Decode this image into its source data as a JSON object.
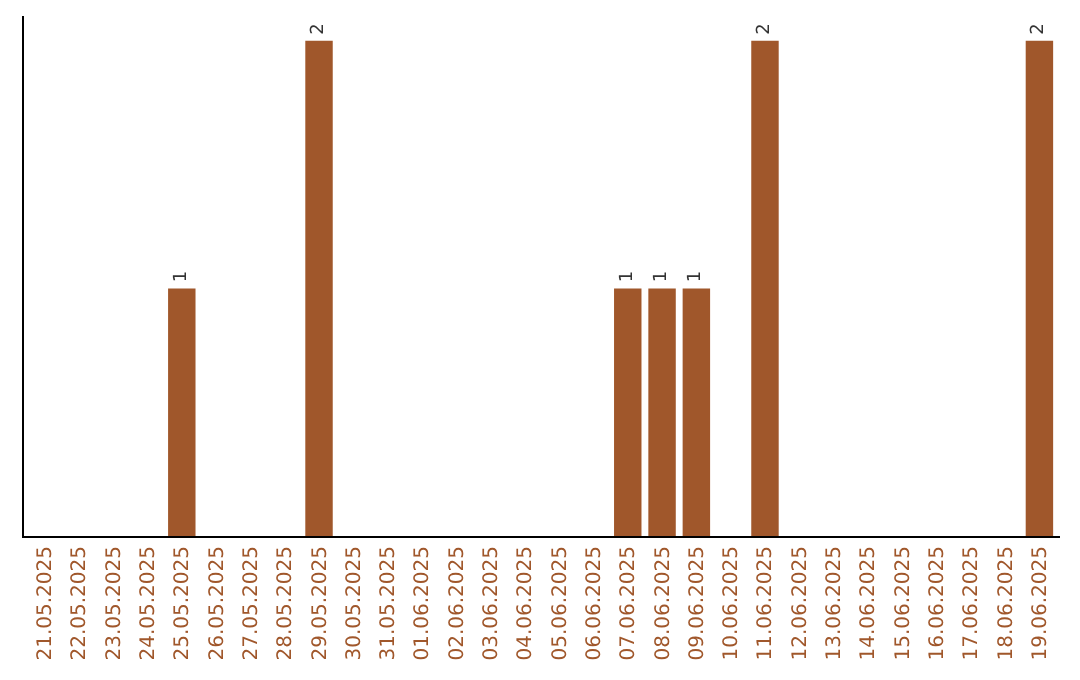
{
  "chart_data": {
    "type": "bar",
    "categories": [
      "21.05.2025",
      "22.05.2025",
      "23.05.2025",
      "24.05.2025",
      "25.05.2025",
      "26.05.2025",
      "27.05.2025",
      "28.05.2025",
      "29.05.2025",
      "30.05.2025",
      "31.05.2025",
      "01.06.2025",
      "02.06.2025",
      "03.06.2025",
      "04.06.2025",
      "05.06.2025",
      "06.06.2025",
      "07.06.2025",
      "08.06.2025",
      "09.06.2025",
      "10.06.2025",
      "11.06.2025",
      "12.06.2025",
      "13.06.2025",
      "14.06.2025",
      "15.06.2025",
      "16.06.2025",
      "17.06.2025",
      "18.06.2025",
      "19.06.2025"
    ],
    "values": [
      0,
      0,
      0,
      0,
      1,
      0,
      0,
      0,
      2,
      0,
      0,
      0,
      0,
      0,
      0,
      0,
      0,
      1,
      1,
      1,
      0,
      2,
      0,
      0,
      0,
      0,
      0,
      0,
      0,
      2
    ],
    "value_labels": [
      null,
      null,
      null,
      null,
      "1",
      null,
      null,
      null,
      "2",
      null,
      null,
      null,
      null,
      null,
      null,
      null,
      null,
      "1",
      "1",
      "1",
      null,
      "2",
      null,
      null,
      null,
      null,
      null,
      null,
      null,
      "2"
    ],
    "color": "#a0572b",
    "ylim": [
      0,
      2.1
    ],
    "tick_labels": "x"
  }
}
